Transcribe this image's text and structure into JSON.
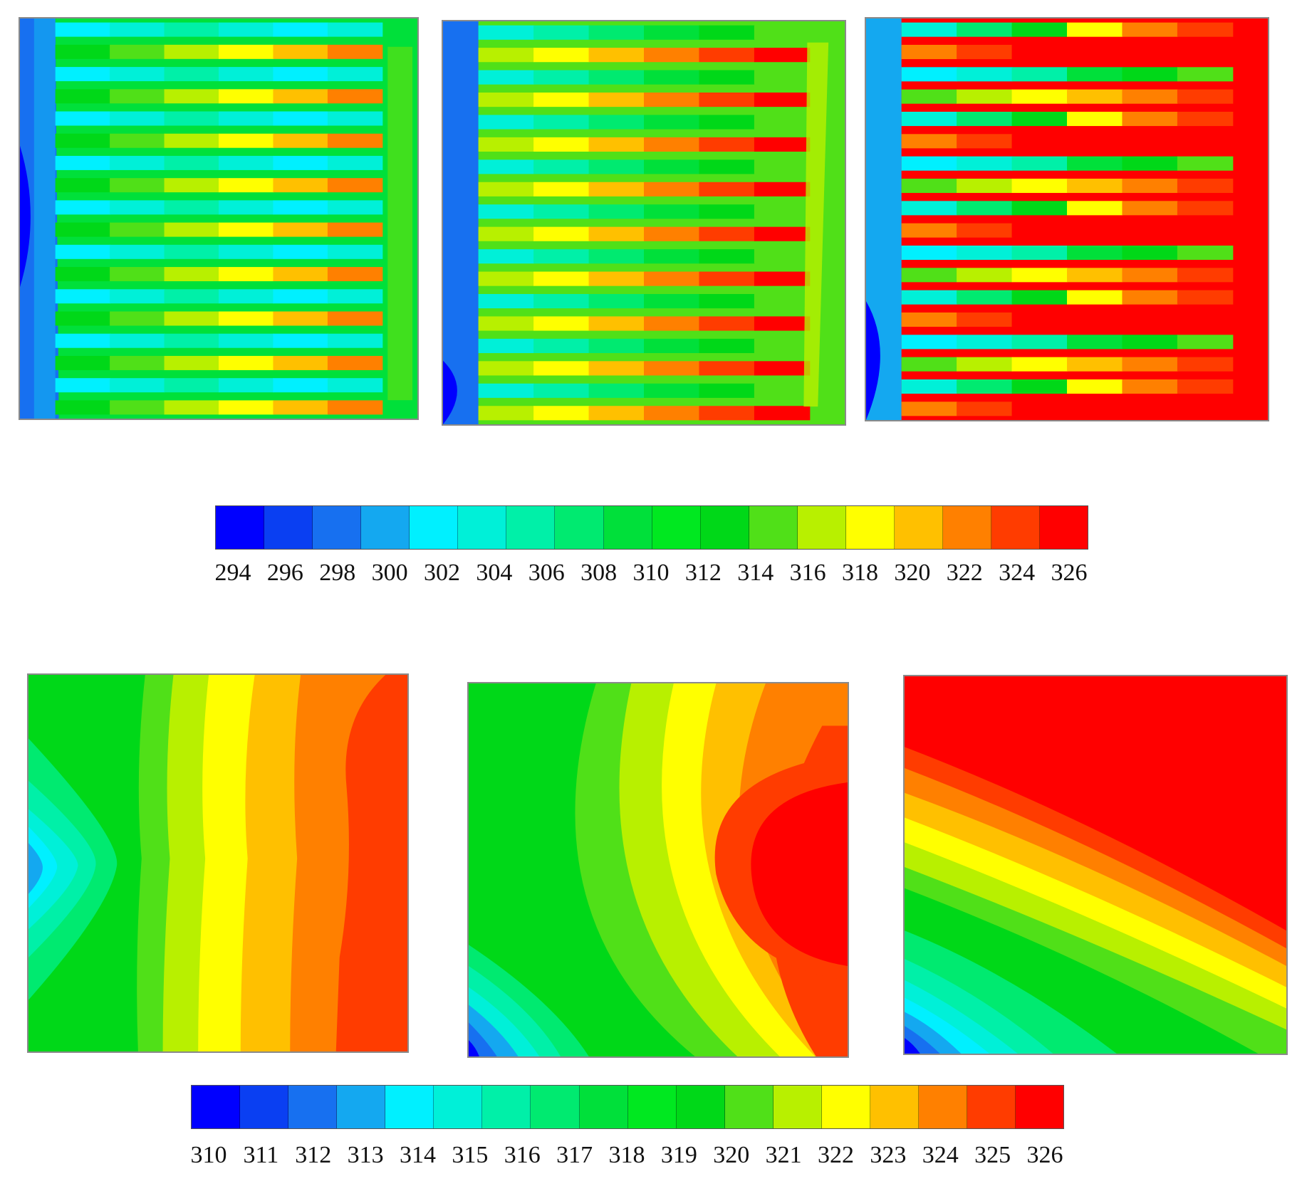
{
  "top_scale": {
    "labels": [
      "294",
      "296",
      "298",
      "300",
      "302",
      "304",
      "306",
      "308",
      "310",
      "312",
      "314",
      "316",
      "318",
      "320",
      "322",
      "324",
      "326"
    ],
    "colors": [
      "#0000ff",
      "#0a3ff2",
      "#1770f0",
      "#14a8f0",
      "#00f0ff",
      "#00f0d8",
      "#00f0a8",
      "#00ea70",
      "#00e03a",
      "#00e820",
      "#00d818",
      "#50e018",
      "#b8f000",
      "#ffff00",
      "#ffc000",
      "#ff8000",
      "#ff3c00",
      "#ff0000"
    ]
  },
  "bottom_scale": {
    "labels": [
      "310",
      "311",
      "312",
      "313",
      "314",
      "315",
      "316",
      "317",
      "318",
      "319",
      "320",
      "321",
      "322",
      "323",
      "324",
      "325",
      "326"
    ],
    "colors": [
      "#0000ff",
      "#0a3ff2",
      "#1770f0",
      "#14a8f0",
      "#00f0ff",
      "#00f0d8",
      "#00f0a8",
      "#00ea70",
      "#00e03a",
      "#00e820",
      "#00d818",
      "#50e018",
      "#b8f000",
      "#ffff00",
      "#ffc000",
      "#ff8000",
      "#ff3c00",
      "#ff0000"
    ]
  }
}
